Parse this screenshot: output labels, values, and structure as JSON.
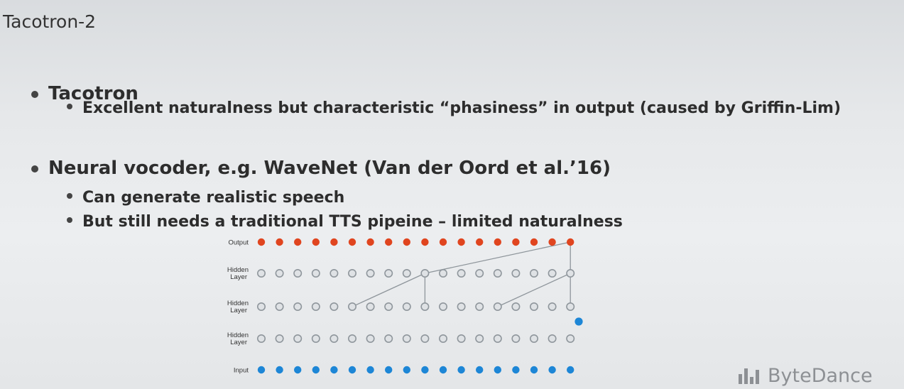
{
  "slide": {
    "title": "Tacotron-2",
    "bullets": [
      {
        "text": "Tacotron",
        "sub": [
          "Excellent naturalness but characteristic “phasiness” in output  (caused by Griffin-Lim)"
        ]
      },
      {
        "text": "Neural vocoder, e.g. WaveNet (Van der Oord et al.’16)",
        "sub": [
          "Can generate realistic speech",
          "But still needs a traditional TTS pipeine – limited naturalness"
        ]
      }
    ]
  },
  "diagram": {
    "layers": [
      {
        "label_lines": [
          "Output"
        ],
        "kind": "output"
      },
      {
        "label_lines": [
          "Hidden",
          "Layer"
        ],
        "kind": "hidden"
      },
      {
        "label_lines": [
          "Hidden",
          "Layer"
        ],
        "kind": "hidden"
      },
      {
        "label_lines": [
          "Hidden",
          "Layer"
        ],
        "kind": "hidden"
      },
      {
        "label_lines": [
          "Input"
        ],
        "kind": "input"
      }
    ],
    "nodes_per_layer": 18,
    "colors": {
      "output": "#e0451f",
      "hidden": "#8f969c",
      "input": "#1d86d6"
    }
  },
  "logo": {
    "text": "ByteDance"
  }
}
